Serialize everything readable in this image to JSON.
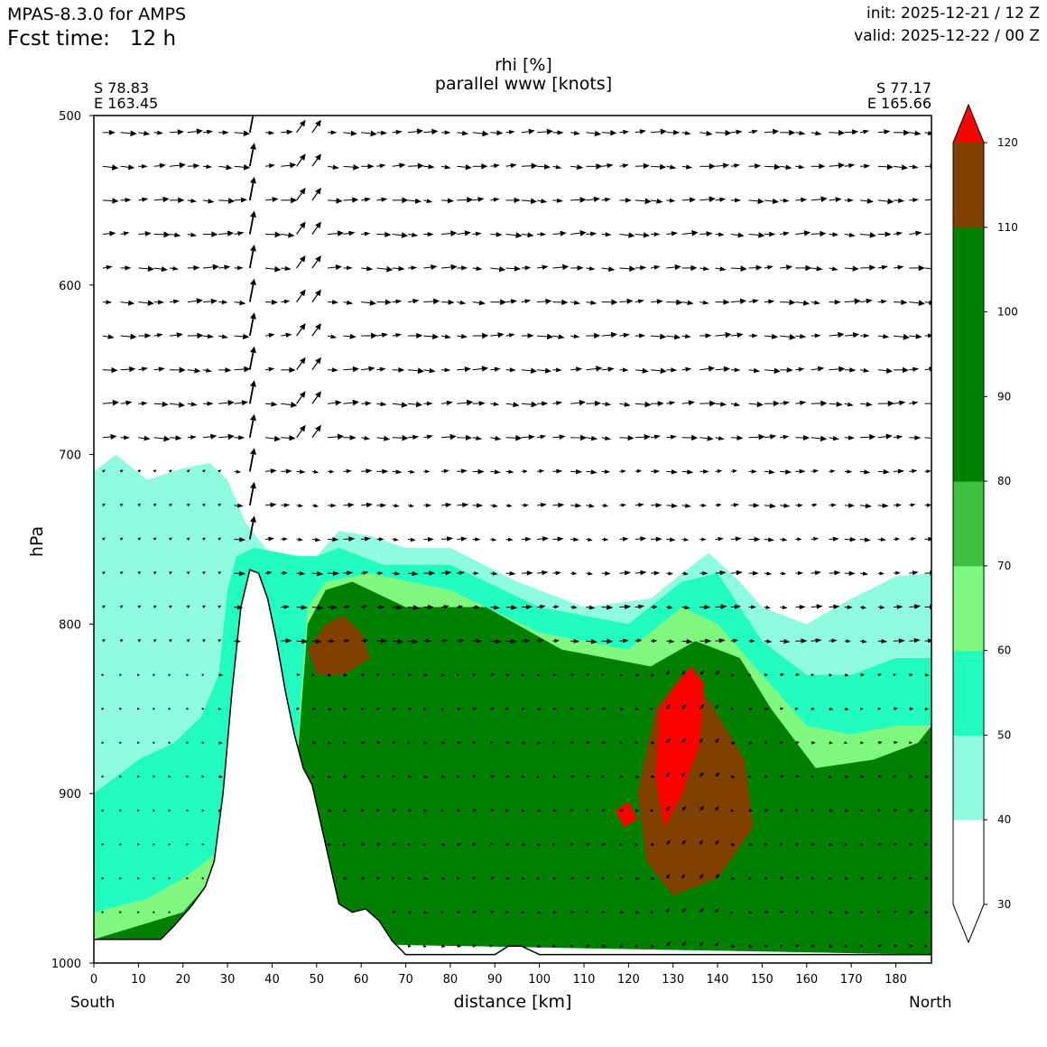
{
  "header": {
    "model": "MPAS-8.3.0 for AMPS",
    "fcst_label": "Fcst time:",
    "fcst_value": "12 h",
    "init": "init: 2025-12-21 / 12 Z",
    "valid": "valid: 2025-12-22 / 00 Z"
  },
  "chart_data": {
    "type": "cross-section contour",
    "title_line1": "rhi [%]",
    "title_line2": "parallel www [knots]",
    "start_lat": "S 78.83",
    "start_lon": "E 163.45",
    "end_lat": "S 77.17",
    "end_lon": "E 165.66",
    "xlabel": "distance [km]",
    "ylabel": "hPa",
    "south_label": "South",
    "north_label": "North",
    "xlim": [
      0,
      188
    ],
    "ylim": [
      1000,
      500
    ],
    "x_ticks": [
      0,
      10,
      20,
      30,
      40,
      50,
      60,
      70,
      80,
      90,
      100,
      110,
      120,
      130,
      140,
      150,
      160,
      170,
      180
    ],
    "y_ticks": [
      500,
      600,
      700,
      800,
      900,
      1000
    ],
    "colorbar": {
      "levels": [
        30,
        40,
        50,
        60,
        70,
        80,
        90,
        100,
        110,
        120
      ],
      "colors": [
        "#ffffff",
        "#8ffce0",
        "#22fcc0",
        "#80f880",
        "#40c040",
        "#008000",
        "#008000",
        "#008000",
        "#804000",
        "#ff0000"
      ]
    },
    "terrain": [
      [
        0,
        986
      ],
      [
        8,
        986
      ],
      [
        15,
        986
      ],
      [
        18,
        978
      ],
      [
        22,
        966
      ],
      [
        25,
        955
      ],
      [
        27,
        940
      ],
      [
        29,
        900
      ],
      [
        31,
        840
      ],
      [
        33,
        790
      ],
      [
        35,
        768
      ],
      [
        37,
        770
      ],
      [
        39,
        785
      ],
      [
        41,
        810
      ],
      [
        43,
        840
      ],
      [
        45,
        865
      ],
      [
        47,
        885
      ],
      [
        49,
        895
      ],
      [
        52,
        930
      ],
      [
        55,
        965
      ],
      [
        58,
        970
      ],
      [
        61,
        968
      ],
      [
        64,
        975
      ],
      [
        67,
        987
      ],
      [
        70,
        995
      ],
      [
        90,
        995
      ],
      [
        93,
        990
      ],
      [
        96,
        990
      ],
      [
        100,
        995
      ],
      [
        150,
        995
      ],
      [
        188,
        995
      ]
    ],
    "rh_regions": [
      {
        "level": 40,
        "points": [
          [
            0,
            710
          ],
          [
            5,
            700
          ],
          [
            12,
            715
          ],
          [
            20,
            708
          ],
          [
            26,
            705
          ],
          [
            30,
            715
          ],
          [
            34,
            740
          ],
          [
            40,
            760
          ],
          [
            46,
            780
          ],
          [
            50,
            760
          ],
          [
            55,
            745
          ],
          [
            62,
            748
          ],
          [
            70,
            755
          ],
          [
            80,
            755
          ],
          [
            95,
            775
          ],
          [
            110,
            790
          ],
          [
            125,
            785
          ],
          [
            132,
            770
          ],
          [
            138,
            758
          ],
          [
            145,
            775
          ],
          [
            150,
            790
          ],
          [
            160,
            800
          ],
          [
            170,
            785
          ],
          [
            180,
            772
          ],
          [
            188,
            770
          ],
          [
            188,
            995
          ],
          [
            0,
            986
          ]
        ]
      },
      {
        "level": 50,
        "points": [
          [
            0,
            900
          ],
          [
            10,
            880
          ],
          [
            18,
            870
          ],
          [
            24,
            855
          ],
          [
            28,
            830
          ],
          [
            30,
            780
          ],
          [
            32,
            760
          ],
          [
            36,
            755
          ],
          [
            46,
            760
          ],
          [
            50,
            760
          ],
          [
            55,
            755
          ],
          [
            65,
            765
          ],
          [
            80,
            765
          ],
          [
            100,
            790
          ],
          [
            120,
            800
          ],
          [
            132,
            775
          ],
          [
            140,
            770
          ],
          [
            145,
            790
          ],
          [
            150,
            810
          ],
          [
            160,
            830
          ],
          [
            170,
            830
          ],
          [
            180,
            820
          ],
          [
            188,
            820
          ],
          [
            188,
            995
          ],
          [
            0,
            986
          ]
        ]
      },
      {
        "level": 60,
        "points": [
          [
            0,
            970
          ],
          [
            12,
            962
          ],
          [
            20,
            950
          ],
          [
            30,
            930
          ],
          [
            45,
            895
          ],
          [
            48,
            790
          ],
          [
            52,
            775
          ],
          [
            62,
            770
          ],
          [
            80,
            780
          ],
          [
            100,
            805
          ],
          [
            120,
            815
          ],
          [
            132,
            790
          ],
          [
            140,
            800
          ],
          [
            150,
            830
          ],
          [
            160,
            860
          ],
          [
            170,
            865
          ],
          [
            180,
            860
          ],
          [
            188,
            860
          ],
          [
            188,
            995
          ],
          [
            0,
            986
          ]
        ]
      },
      {
        "level": 80,
        "points": [
          [
            20,
            970
          ],
          [
            25,
            955
          ],
          [
            45,
            905
          ],
          [
            48,
            800
          ],
          [
            52,
            780
          ],
          [
            58,
            775
          ],
          [
            70,
            790
          ],
          [
            88,
            790
          ],
          [
            105,
            815
          ],
          [
            125,
            825
          ],
          [
            135,
            810
          ],
          [
            145,
            820
          ],
          [
            152,
            850
          ],
          [
            162,
            885
          ],
          [
            175,
            880
          ],
          [
            185,
            870
          ],
          [
            188,
            860
          ],
          [
            188,
            995
          ],
          [
            0,
            986
          ]
        ]
      },
      {
        "level": 110,
        "points": [
          [
            48,
            815
          ],
          [
            52,
            800
          ],
          [
            56,
            795
          ],
          [
            60,
            805
          ],
          [
            62,
            820
          ],
          [
            56,
            830
          ],
          [
            50,
            830
          ]
        ]
      },
      {
        "level": 110,
        "points": [
          [
            126,
            850
          ],
          [
            132,
            830
          ],
          [
            138,
            845
          ],
          [
            146,
            880
          ],
          [
            148,
            920
          ],
          [
            140,
            950
          ],
          [
            130,
            960
          ],
          [
            124,
            940
          ],
          [
            122,
            900
          ]
        ]
      },
      {
        "level": 120,
        "points": [
          [
            127,
            850
          ],
          [
            131,
            835
          ],
          [
            134,
            825
          ],
          [
            137,
            835
          ],
          [
            136,
            870
          ],
          [
            132,
            900
          ],
          [
            128,
            920
          ],
          [
            126,
            890
          ]
        ]
      },
      {
        "level": 120,
        "points": [
          [
            117,
            910
          ],
          [
            120,
            905
          ],
          [
            122,
            915
          ],
          [
            119,
            920
          ]
        ]
      }
    ],
    "wind_field": {
      "rows_hpa": [
        510,
        530,
        550,
        570,
        590,
        610,
        630,
        650,
        670,
        690,
        710,
        730,
        750,
        770,
        790,
        810,
        830,
        850,
        870,
        890,
        910,
        930,
        950,
        970,
        990
      ],
      "cols_km": [
        2,
        6,
        10,
        13.5,
        17,
        21,
        24.5,
        28,
        31.5,
        35,
        38.5,
        42,
        45.5,
        49,
        52.5,
        56,
        60,
        63.5,
        67,
        70.5,
        74,
        78,
        81.5,
        85,
        89,
        92.5,
        96,
        99.5,
        103,
        107,
        110.5,
        114,
        118,
        121.5,
        125,
        128.5,
        132,
        136,
        139.5,
        143,
        147,
        150.5,
        154,
        157.5,
        161,
        165,
        168.5,
        172,
        176,
        179.5,
        183,
        186.5
      ],
      "jet_columns_km": [
        35,
        39
      ],
      "jet_upward_km": 35,
      "jet_downward_km": 39
    }
  }
}
